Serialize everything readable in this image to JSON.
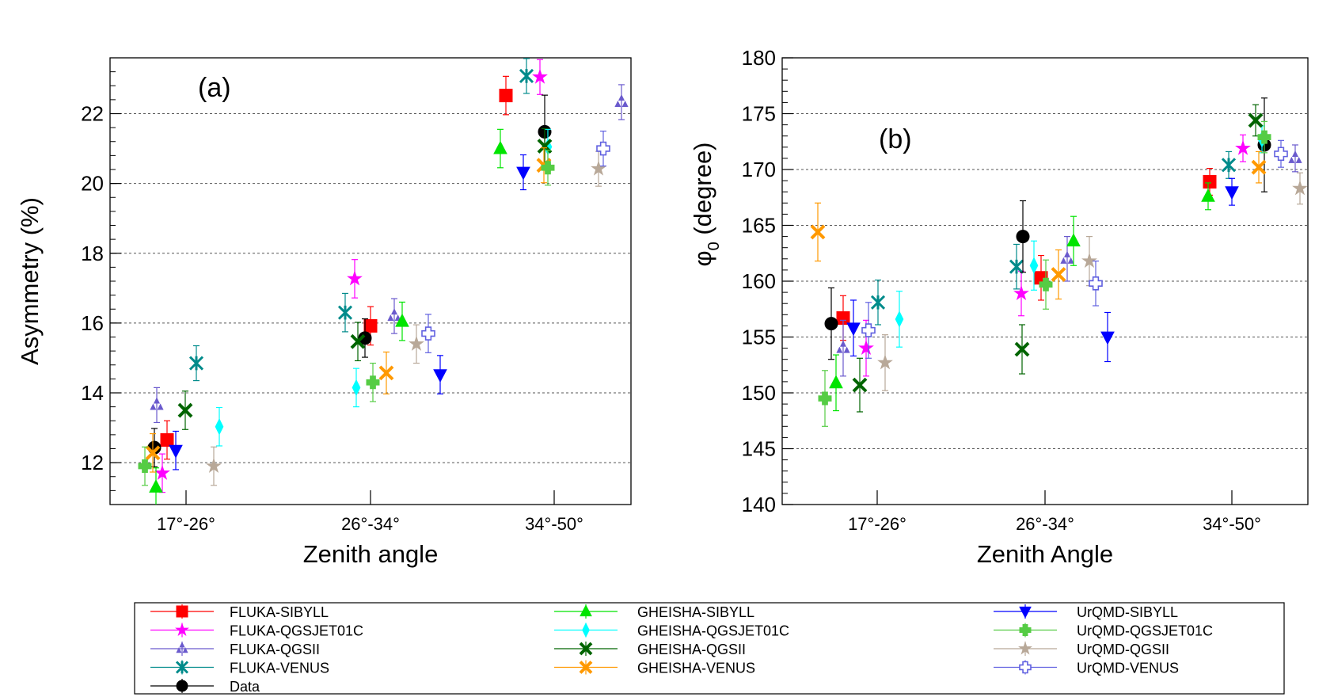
{
  "figure": {
    "series": [
      {
        "name": "FLUKA-SIBYLL",
        "color": "#ff0000",
        "marker": "square",
        "open": false
      },
      {
        "name": "FLUKA-QGSJET01C",
        "color": "#ff00ff",
        "marker": "star",
        "open": false
      },
      {
        "name": "FLUKA-QGSII",
        "color": "#6a5acd",
        "marker": "tri-trio",
        "open": false
      },
      {
        "name": "FLUKA-VENUS",
        "color": "#008b8b",
        "marker": "asterisk",
        "open": false
      },
      {
        "name": "Data",
        "color": "#000000",
        "marker": "circle",
        "open": false
      },
      {
        "name": "GHEISHA-SIBYLL",
        "color": "#00e400",
        "marker": "triangle-up",
        "open": false
      },
      {
        "name": "GHEISHA-QGSJET01C",
        "color": "#00ffff",
        "marker": "diamond",
        "open": false
      },
      {
        "name": "GHEISHA-QGSII",
        "color": "#006400",
        "marker": "x",
        "open": false
      },
      {
        "name": "GHEISHA-VENUS",
        "color": "#ff9900",
        "marker": "x",
        "open": false
      },
      {
        "name": "UrQMD-SIBYLL",
        "color": "#0000ff",
        "marker": "triangle-down",
        "open": false
      },
      {
        "name": "UrQMD-QGSJET01C",
        "color": "#55cc44",
        "marker": "plus",
        "open": false
      },
      {
        "name": "UrQMD-QGSII",
        "color": "#b8a898",
        "marker": "star",
        "open": false
      },
      {
        "name": "UrQMD-VENUS",
        "color": "#6060e0",
        "marker": "plus",
        "open": true
      }
    ]
  },
  "chart_data": [
    {
      "type": "scatter",
      "panel_label": "(a)",
      "xlabel": "Zenith angle",
      "ylabel": "Asymmetry (%)",
      "categories": [
        "17°-26°",
        "26°-34°",
        "34°-50°"
      ],
      "ylim": [
        10.8,
        23.6
      ],
      "yticks": [
        12,
        14,
        16,
        18,
        20,
        22
      ],
      "grid": "horizontal dashed",
      "points": [
        {
          "series": "FLUKA-SIBYLL",
          "values": [
            12.65,
            15.92,
            22.52
          ],
          "err": [
            0.55,
            0.55,
            0.55
          ]
        },
        {
          "series": "FLUKA-QGSJET01C",
          "values": [
            11.7,
            17.27,
            23.05
          ],
          "err": [
            0.55,
            0.55,
            0.5
          ]
        },
        {
          "series": "FLUKA-QGSII",
          "values": [
            13.65,
            16.2,
            22.33
          ],
          "err": [
            0.5,
            0.5,
            0.5
          ]
        },
        {
          "series": "FLUKA-VENUS",
          "values": [
            14.85,
            16.3,
            23.08
          ],
          "err": [
            0.5,
            0.55,
            0.5
          ]
        },
        {
          "series": "Data",
          "values": [
            12.43,
            15.57,
            21.48
          ],
          "err": [
            0.55,
            0.55,
            1.05
          ]
        },
        {
          "series": "GHEISHA-SIBYLL",
          "values": [
            11.3,
            16.05,
            21.0
          ],
          "err": [
            0.55,
            0.55,
            0.55
          ]
        },
        {
          "series": "GHEISHA-QGSJET01C",
          "values": [
            13.03,
            14.15,
            21.05
          ],
          "err": [
            0.55,
            0.55,
            0.5
          ]
        },
        {
          "series": "GHEISHA-QGSII",
          "values": [
            13.5,
            15.47,
            21.07
          ],
          "err": [
            0.55,
            0.55,
            0.5
          ]
        },
        {
          "series": "GHEISHA-VENUS",
          "values": [
            12.28,
            14.57,
            20.52
          ],
          "err": [
            0.55,
            0.6,
            0.5
          ]
        },
        {
          "series": "UrQMD-SIBYLL",
          "values": [
            12.35,
            14.52,
            20.32
          ],
          "err": [
            0.55,
            0.55,
            0.5
          ]
        },
        {
          "series": "UrQMD-QGSJET01C",
          "values": [
            11.9,
            14.3,
            20.45
          ],
          "err": [
            0.55,
            0.55,
            0.5
          ]
        },
        {
          "series": "UrQMD-QGSII",
          "values": [
            11.9,
            15.4,
            20.42
          ],
          "err": [
            0.55,
            0.55,
            0.5
          ]
        },
        {
          "series": "UrQMD-VENUS",
          "values": [
            null,
            15.7,
            21.0
          ],
          "err": [
            0,
            0.55,
            0.5
          ]
        }
      ]
    },
    {
      "type": "scatter",
      "panel_label": "(b)",
      "xlabel": "Zenith Angle",
      "ylabel_symbol": "φ",
      "ylabel_subscript": "0",
      "ylabel_unit": " (degree)",
      "categories": [
        "17°-26°",
        "26°-34°",
        "34°-50°"
      ],
      "ylim": [
        140,
        180
      ],
      "yticks": [
        140,
        145,
        150,
        155,
        160,
        165,
        170,
        175,
        180
      ],
      "grid": "horizontal dashed",
      "points": [
        {
          "series": "FLUKA-SIBYLL",
          "values": [
            156.7,
            160.3,
            168.9
          ],
          "err": [
            2.0,
            2.0,
            1.2
          ]
        },
        {
          "series": "FLUKA-QGSJET01C",
          "values": [
            154.0,
            158.9,
            171.9
          ],
          "err": [
            2.5,
            2.0,
            1.2
          ]
        },
        {
          "series": "FLUKA-QGSII",
          "values": [
            154.0,
            162.0,
            171.0
          ],
          "err": [
            2.5,
            2.0,
            1.2
          ]
        },
        {
          "series": "FLUKA-VENUS",
          "values": [
            158.1,
            161.3,
            170.4
          ],
          "err": [
            2.0,
            2.0,
            1.2
          ]
        },
        {
          "series": "Data",
          "values": [
            156.2,
            164.0,
            172.2
          ],
          "err": [
            3.2,
            3.2,
            4.2
          ]
        },
        {
          "series": "GHEISHA-SIBYLL",
          "values": [
            150.9,
            163.6,
            167.6
          ],
          "err": [
            2.5,
            2.2,
            1.2
          ]
        },
        {
          "series": "GHEISHA-QGSJET01C",
          "values": [
            156.6,
            161.4,
            172.7
          ],
          "err": [
            2.5,
            2.2,
            1.2
          ]
        },
        {
          "series": "GHEISHA-QGSII",
          "values": [
            150.7,
            153.9,
            174.4
          ],
          "err": [
            2.4,
            2.2,
            1.4
          ]
        },
        {
          "series": "GHEISHA-VENUS",
          "values": [
            164.4,
            160.6,
            170.2
          ],
          "err": [
            2.6,
            2.2,
            1.4
          ]
        },
        {
          "series": "UrQMD-SIBYLL",
          "values": [
            155.8,
            null,
            168.0
          ],
          "err": [
            2.5,
            0,
            1.2
          ]
        },
        {
          "series": "UrQMD-QGSJET01C",
          "values": [
            149.5,
            159.7,
            172.9
          ],
          "err": [
            2.5,
            2.2,
            1.4
          ]
        },
        {
          "series": "UrQMD-QGSII",
          "values": [
            152.7,
            161.8,
            168.3
          ],
          "err": [
            2.5,
            2.2,
            1.4
          ]
        },
        {
          "series": "UrQMD-VENUS",
          "values": [
            155.6,
            159.8,
            171.4
          ],
          "err": [
            2.5,
            2.0,
            1.2
          ]
        },
        {
          "series": "UrQMD-SIBYLL",
          "values": [
            null,
            155.0,
            null
          ],
          "err": [
            0,
            2.2,
            0
          ],
          "alt": true
        }
      ]
    }
  ]
}
